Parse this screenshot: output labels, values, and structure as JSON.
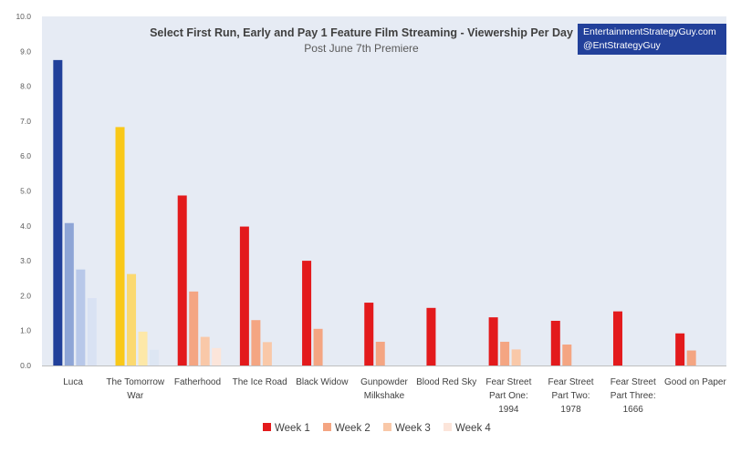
{
  "chart_data": {
    "type": "bar",
    "title": "Select First Run, Early and Pay 1 Feature Film Streaming - Viewership Per Day",
    "subtitle": "Post June 7th Premiere",
    "xlabel": "",
    "ylabel": "",
    "ylim": [
      0,
      10
    ],
    "yticks": [
      "0.0",
      "1.0",
      "2.0",
      "3.0",
      "4.0",
      "5.0",
      "6.0",
      "7.0",
      "8.0",
      "9.0",
      "10.0"
    ],
    "grid": false,
    "legend_position": "bottom",
    "categories": [
      [
        "Luca"
      ],
      [
        "The Tomorrow",
        "War"
      ],
      [
        "Fatherhood"
      ],
      [
        "The Ice Road"
      ],
      [
        "Black Widow"
      ],
      [
        "Gunpowder",
        "Milkshake"
      ],
      [
        "Blood Red Sky"
      ],
      [
        "Fear Street",
        "Part One:",
        "1994"
      ],
      [
        "Fear Street",
        "Part Two:",
        "1978"
      ],
      [
        "Fear Street",
        "Part Three:",
        "1666"
      ],
      [
        "Good on Paper"
      ]
    ],
    "series": [
      {
        "name": "Week 1",
        "values": [
          8.75,
          6.83,
          4.87,
          3.98,
          3.0,
          1.8,
          1.65,
          1.38,
          1.28,
          1.55,
          0.92
        ]
      },
      {
        "name": "Week 2",
        "values": [
          4.08,
          2.62,
          2.12,
          1.3,
          1.05,
          0.68,
          null,
          0.68,
          0.6,
          null,
          0.43
        ]
      },
      {
        "name": "Week 3",
        "values": [
          2.75,
          0.97,
          0.82,
          0.67,
          null,
          null,
          null,
          0.46,
          null,
          null,
          null
        ]
      },
      {
        "name": "Week 4",
        "values": [
          1.93,
          0.45,
          0.5,
          null,
          null,
          null,
          null,
          null,
          null,
          null,
          null
        ]
      }
    ],
    "legend_colors": [
      "#e31a1c",
      "#f4a582",
      "#f9c8a8",
      "#fce5da"
    ],
    "bar_colors": [
      [
        "#21409a",
        "#8ea5d6",
        "#b8c8e9",
        "#d9e2f3"
      ],
      [
        "#f9c818",
        "#fbd970",
        "#fde8a8",
        "#dde6f3"
      ],
      [
        "#e31a1c",
        "#f4a582",
        "#f9c8a8",
        "#fce5da"
      ]
    ]
  },
  "badge": {
    "line1": "EntertainmentStrategyGuy.com",
    "line2": "@EntStrategyGuy"
  }
}
